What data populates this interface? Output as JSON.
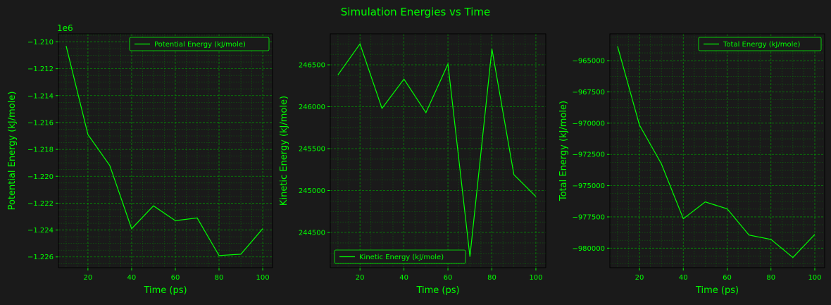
{
  "title": "Simulation Energies vs Time",
  "colors": {
    "background": "#1a1a1a",
    "line": "#00ff00",
    "text": "#00ff00",
    "grid": "#00aa00"
  },
  "chart_data": [
    {
      "type": "line",
      "xlabel": "Time (ps)",
      "ylabel": "Potential Energy (kJ/mole)",
      "y_offset_label": "1e6",
      "xlim": [
        6.5,
        104.5
      ],
      "ylim": [
        -1.2268,
        -1.2094
      ],
      "xticks": [
        20,
        40,
        60,
        80,
        100
      ],
      "yticks": [
        -1.226,
        -1.224,
        -1.222,
        -1.22,
        -1.218,
        -1.216,
        -1.214,
        -1.212,
        -1.21
      ],
      "ytick_labels": [
        "−1.226",
        "−1.224",
        "−1.222",
        "−1.220",
        "−1.218",
        "−1.216",
        "−1.214",
        "−1.212",
        "−1.210"
      ],
      "grid": true,
      "legend_position": "top-right",
      "series": [
        {
          "name": "Potential Energy (kJ/mole)",
          "x": [
            10,
            20,
            30,
            40,
            50,
            60,
            70,
            80,
            90,
            100
          ],
          "y": [
            -1.2103,
            -1.2169,
            -1.2192,
            -1.2239,
            -1.2222,
            -1.2233,
            -1.2231,
            -1.2259,
            -1.2258,
            -1.2239
          ]
        }
      ]
    },
    {
      "type": "line",
      "xlabel": "Time (ps)",
      "ylabel": "Kinetic Energy (kJ/mole)",
      "y_offset_label": "",
      "xlim": [
        6.5,
        104.5
      ],
      "ylim": [
        244080,
        246870
      ],
      "xticks": [
        20,
        40,
        60,
        80,
        100
      ],
      "yticks": [
        244500,
        245000,
        245500,
        246000,
        246500
      ],
      "ytick_labels": [
        "244500",
        "245000",
        "245500",
        "246000",
        "246500"
      ],
      "grid": true,
      "legend_position": "bottom-left",
      "series": [
        {
          "name": "Kinetic Energy (kJ/mole)",
          "x": [
            10,
            20,
            30,
            40,
            50,
            60,
            70,
            80,
            90,
            100
          ],
          "y": [
            246380,
            246750,
            245980,
            246330,
            245930,
            246510,
            244210,
            246690,
            245190,
            244930
          ]
        }
      ]
    },
    {
      "type": "line",
      "xlabel": "Time (ps)",
      "ylabel": "Total Energy (kJ/mole)",
      "y_offset_label": "",
      "xlim": [
        6.5,
        104.5
      ],
      "ylim": [
        -981560,
        -962850
      ],
      "xticks": [
        20,
        40,
        60,
        80,
        100
      ],
      "yticks": [
        -980000,
        -977500,
        -975000,
        -972500,
        -970000,
        -967500,
        -965000
      ],
      "ytick_labels": [
        "−980000",
        "−977500",
        "−975000",
        "−972500",
        "−970000",
        "−967500",
        "−965000"
      ],
      "grid": true,
      "legend_position": "top-right",
      "series": [
        {
          "name": "Total Energy (kJ/mole)",
          "x": [
            10,
            20,
            30,
            40,
            50,
            60,
            70,
            80,
            90,
            100
          ],
          "y": [
            -963850,
            -970150,
            -973250,
            -977650,
            -976300,
            -976850,
            -978950,
            -979300,
            -980750,
            -978900
          ]
        }
      ]
    }
  ]
}
